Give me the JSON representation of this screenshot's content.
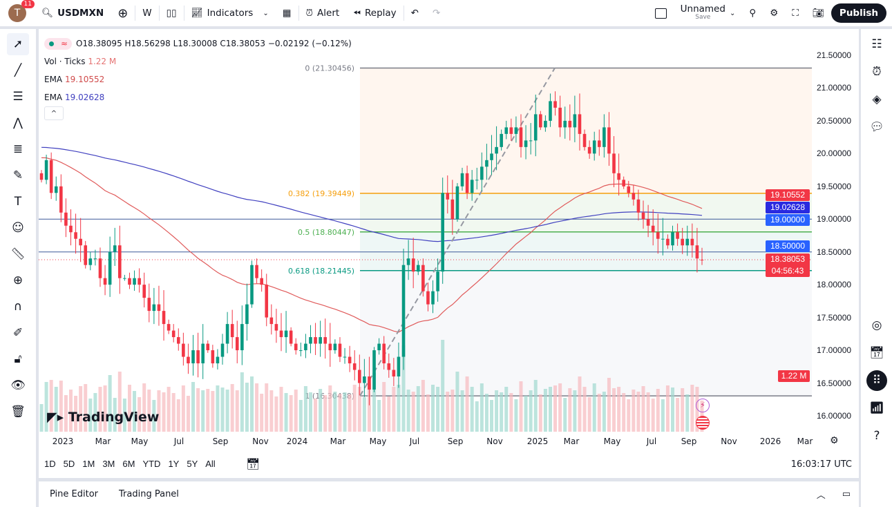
{
  "topbar": {
    "avatar_letter": "T",
    "notifications": "11",
    "symbol": "USDMXN",
    "interval": "W",
    "indicators": "Indicators",
    "alert": "Alert",
    "replay": "Replay",
    "layout_name": "Unnamed",
    "layout_save": "Save",
    "publish": "Publish"
  },
  "legend": {
    "ohlc": "O18.38095 H18.56298 L18.30008 C18.38053 −0.02192 (−0.12%)",
    "vol_label": "Vol · Ticks",
    "vol_value": "1.22 M",
    "ema1_label": "EMA",
    "ema1_value": "19.10552",
    "ema2_label": "EMA",
    "ema2_value": "19.02628"
  },
  "colors": {
    "up": "#089981",
    "down": "#f23645",
    "ema_fast": "#e05a5a",
    "ema_slow": "#3f3fbf",
    "fib_0382": "#f59e0b",
    "fib_05": "#4caf50",
    "fib_0618": "#089981",
    "hline": "#2962ff"
  },
  "fib": [
    {
      "label": "0 (21.30456)",
      "price": 21.30456
    },
    {
      "label": "0.382 (19.39449)",
      "price": 19.39449
    },
    {
      "label": "0.5 (18.80447)",
      "price": 18.80447
    },
    {
      "label": "0.618 (18.21445)",
      "price": 18.21445
    },
    {
      "label": "1 (16.30438)",
      "price": 16.30438
    }
  ],
  "price_axis": [
    "21.50000",
    "21.00000",
    "20.50000",
    "20.00000",
    "19.50000",
    "19.00000",
    "18.50000",
    "18.00000",
    "17.50000",
    "17.00000",
    "16.50000",
    "16.00000"
  ],
  "price_labels": {
    "ema_fast": "19.10552",
    "ema_slow": "19.02628",
    "hline1": "19.00000",
    "hline2": "18.50000",
    "last": "18.38053",
    "countdown": "04:56:43",
    "volume": "1.22 M"
  },
  "time_axis": [
    "2023",
    "Mar",
    "May",
    "Jul",
    "Sep",
    "Nov",
    "2024",
    "Mar",
    "May",
    "Jul",
    "Sep",
    "Nov",
    "2025",
    "Mar",
    "May",
    "Jul",
    "Sep",
    "Nov",
    "2026",
    "Mar"
  ],
  "timeframes": [
    "1D",
    "5D",
    "1M",
    "3M",
    "6M",
    "YTD",
    "1Y",
    "5Y",
    "All"
  ],
  "clock": "16:03:17 UTC",
  "logo": "TradingView",
  "footer": {
    "pine": "Pine Editor",
    "panel": "Trading Panel"
  },
  "chart_data": {
    "type": "candlestick",
    "interval": "weekly",
    "ylim": [
      16.0,
      21.5
    ],
    "x_range": [
      "2022-12",
      "2026-03"
    ],
    "closes": [
      19.6,
      19.9,
      19.4,
      19.5,
      19.1,
      18.9,
      18.8,
      18.7,
      18.6,
      18.3,
      18.4,
      18.4,
      18.1,
      18.0,
      18.5,
      18.6,
      18.1,
      18.1,
      18.0,
      18.1,
      18.0,
      17.8,
      17.6,
      17.7,
      17.6,
      17.4,
      17.3,
      17.2,
      17.1,
      16.9,
      16.8,
      17.0,
      16.8,
      17.1,
      17.0,
      16.8,
      16.9,
      17.1,
      17.4,
      17.2,
      17.0,
      17.4,
      17.7,
      18.3,
      18.1,
      18.0,
      17.5,
      17.4,
      17.3,
      17.2,
      17.3,
      17.1,
      17.0,
      17.0,
      17.1,
      17.2,
      17.1,
      17.2,
      17.1,
      17.0,
      17.1,
      16.9,
      16.9,
      16.8,
      16.7,
      16.5,
      16.6,
      16.4,
      17.0,
      17.1,
      16.8,
      16.7,
      16.6,
      16.9,
      18.3,
      18.4,
      18.2,
      18.3,
      17.9,
      17.7,
      17.9,
      18.2,
      19.4,
      19.3,
      19.0,
      19.5,
      19.7,
      19.4,
      19.6,
      19.6,
      19.8,
      19.9,
      20.0,
      20.1,
      20.3,
      20.4,
      20.3,
      20.4,
      20.1,
      20.2,
      20.2,
      20.6,
      20.4,
      20.5,
      20.8,
      20.7,
      20.4,
      20.5,
      20.4,
      20.6,
      20.3,
      20.1,
      20.0,
      20.2,
      20.1,
      20.4,
      20.0,
      19.7,
      19.6,
      19.5,
      19.4,
      19.3,
      19.1,
      19.0,
      18.9,
      18.8,
      18.7,
      18.7,
      18.6,
      18.8,
      18.7,
      18.6,
      18.7,
      18.6,
      18.4,
      18.38053
    ],
    "last": {
      "open": 18.38095,
      "high": 18.56298,
      "low": 18.30008,
      "close": 18.38053
    },
    "horizontal_lines": [
      19.0,
      18.5
    ]
  }
}
